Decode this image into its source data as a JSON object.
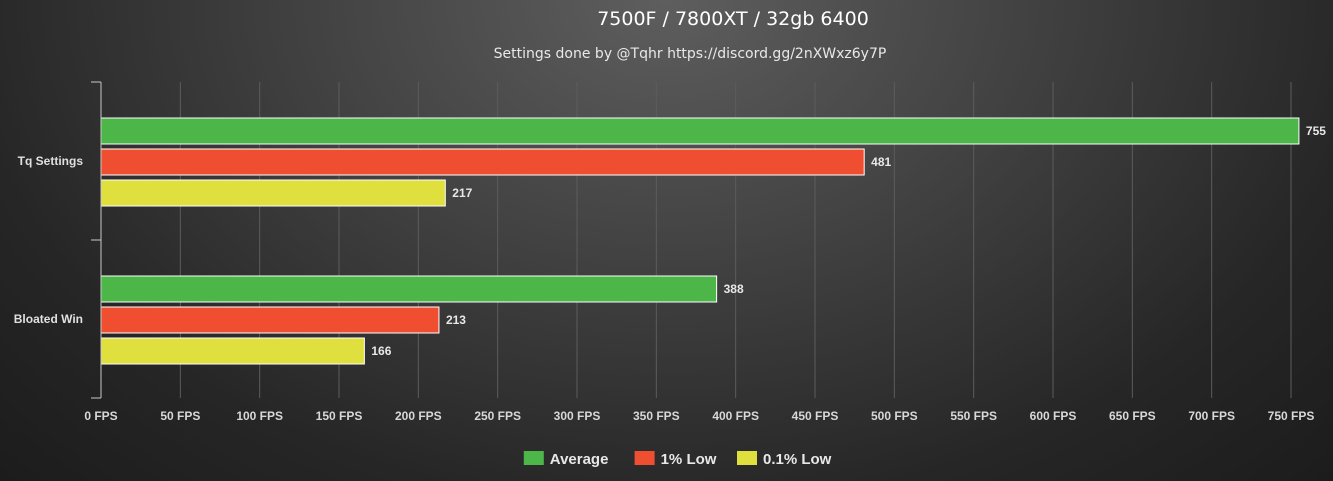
{
  "chart_data": {
    "type": "bar",
    "orientation": "horizontal",
    "title": "7500F / 7800XT / 32gb 6400",
    "subtitle": "Settings done by @Tqhr https://discord.gg/2nXWxz6y7P",
    "categories": [
      "Tq Settings",
      "Bloated Win"
    ],
    "series": [
      {
        "name": "Average",
        "color": "#4cb649",
        "values": [
          755,
          388
        ]
      },
      {
        "name": "1% Low",
        "color": "#f04e31",
        "values": [
          481,
          213
        ]
      },
      {
        "name": "0.1% Low",
        "color": "#dfdf3e",
        "values": [
          217,
          166
        ]
      }
    ],
    "xlim": [
      0,
      750
    ],
    "x_tick_step": 50,
    "x_tick_suffix": " FPS",
    "grid": true,
    "legend_position": "bottom-center"
  }
}
